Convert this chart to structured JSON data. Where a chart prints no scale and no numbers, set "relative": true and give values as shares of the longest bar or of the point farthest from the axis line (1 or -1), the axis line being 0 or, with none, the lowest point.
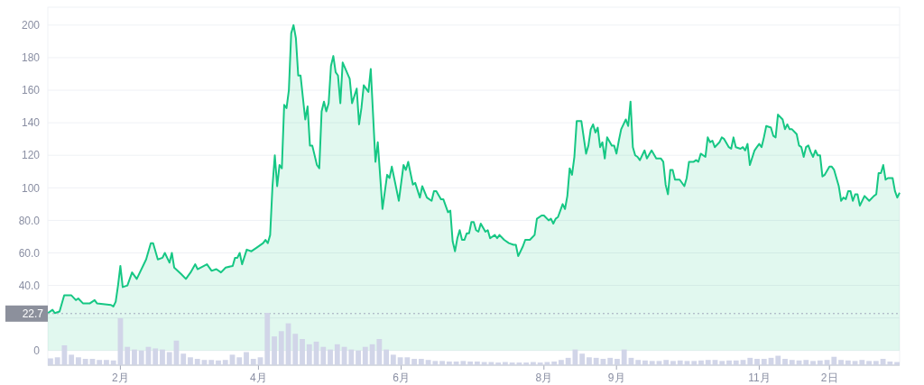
{
  "chart_data": [
    {
      "type": "area",
      "color": "#16c784",
      "grid": "y",
      "x": [
        "--01-01",
        "--01-03",
        "--01-04",
        "--01-06",
        "--01-08",
        "--01-11",
        "--01-13",
        "--01-14",
        "--01-16",
        "--01-19",
        "--01-21",
        "--01-22",
        "--01-28",
        "--01-29",
        "--01-30",
        "--01-31",
        "--02-01",
        "--02-02",
        "--02-04",
        "--02-06",
        "--02-08",
        "--02-12",
        "--02-14",
        "--02-15",
        "--02-17",
        "--02-19",
        "--02-20",
        "--02-22",
        "--02-23",
        "--02-24",
        "--02-27",
        "--03-01",
        "--03-03",
        "--03-05",
        "--03-06",
        "--03-10",
        "--03-12",
        "--03-14",
        "--03-16",
        "--03-18",
        "--03-21",
        "--03-22",
        "--03-23",
        "--03-24",
        "--03-25",
        "--03-27",
        "--03-29",
        "--03-31",
        "--04-03",
        "--04-04",
        "--04-05",
        "--04-06",
        "--04-07",
        "--04-08",
        "--04-09",
        "--04-10",
        "--04-11",
        "--04-12",
        "--04-13",
        "--04-14",
        "--04-15",
        "--04-16",
        "--04-17",
        "--04-18",
        "--04-19",
        "--04-21",
        "--04-22",
        "--04-23",
        "--04-24",
        "--04-26",
        "--04-27",
        "--04-28",
        "--04-29",
        "--04-30",
        "--05-01",
        "--05-02",
        "--05-03",
        "--05-04",
        "--05-05",
        "--05-06",
        "--05-07",
        "--05-10",
        "--05-11",
        "--05-13",
        "--05-14",
        "--05-15",
        "--05-16",
        "--05-18",
        "--05-19",
        "--05-21",
        "--05-22",
        "--05-24",
        "--05-26",
        "--05-27",
        "--05-28",
        "--05-31",
        "--06-02",
        "--06-03",
        "--06-04",
        "--06-06",
        "--06-07",
        "--06-09",
        "--06-10",
        "--06-12",
        "--06-14",
        "--06-15",
        "--06-16",
        "--06-18",
        "--06-19",
        "--06-21",
        "--06-22",
        "--06-23",
        "--06-24",
        "--06-25",
        "--06-26",
        "--06-27",
        "--06-28",
        "--06-29",
        "--06-30",
        "--07-01",
        "--07-02",
        "--07-03",
        "--07-04",
        "--07-05",
        "--07-07",
        "--07-08",
        "--07-09",
        "--07-11",
        "--07-12",
        "--07-13",
        "--07-15",
        "--07-17",
        "--07-19",
        "--07-20",
        "--07-21",
        "--07-23",
        "--07-24",
        "--07-26",
        "--07-28",
        "--07-29",
        "--07-31",
        "--08-01",
        "--08-03",
        "--08-04",
        "--08-05",
        "--08-06",
        "--08-07",
        "--08-09",
        "--08-10",
        "--08-11",
        "--08-12",
        "--08-13",
        "--08-14",
        "--08-15",
        "--08-17",
        "--08-19",
        "--08-20",
        "--08-21",
        "--08-22",
        "--08-23",
        "--08-24",
        "--08-25",
        "--08-26",
        "--08-27",
        "--08-28",
        "--08-30",
        "--08-31",
        "--09-01",
        "--09-02",
        "--09-03",
        "--09-04",
        "--09-05",
        "--09-06",
        "--09-07",
        "--09-08",
        "--09-09",
        "--09-10",
        "--09-11",
        "--09-13",
        "--09-14",
        "--09-16",
        "--09-18",
        "--09-20",
        "--09-21",
        "--09-22",
        "--09-23",
        "--09-24",
        "--09-25",
        "--09-26",
        "--09-28",
        "--09-30",
        "--10-01",
        "--10-02",
        "--10-04",
        "--10-05",
        "--10-06",
        "--10-07",
        "--10-09",
        "--10-10",
        "--10-11",
        "--10-12",
        "--10-13",
        "--10-15",
        "--10-16",
        "--10-17",
        "--10-19",
        "--10-20",
        "--10-21",
        "--10-22",
        "--10-24",
        "--10-25",
        "--10-26",
        "--10-27",
        "--10-28",
        "--10-30",
        "--10-31",
        "--11-01",
        "--11-02",
        "--11-03",
        "--11-04",
        "--11-06",
        "--11-07",
        "--11-08",
        "--11-09",
        "--11-11",
        "--11-12",
        "--11-13",
        "--11-14",
        "--11-15",
        "--11-17",
        "--11-18",
        "--11-19",
        "--11-20",
        "--11-21",
        "--11-22",
        "--11-23",
        "--11-24",
        "--11-25",
        "--11-26",
        "--11-27",
        "--11-28",
        "--11-29",
        "--12-01",
        "--12-02",
        "--12-03",
        "--12-05",
        "--12-06",
        "--12-07",
        "--12-08",
        "--12-09",
        "--12-10",
        "--12-11",
        "--12-12",
        "--12-13",
        "--12-14",
        "--12-16",
        "--12-18",
        "--12-20",
        "--12-21",
        "--12-22",
        "--12-23",
        "--12-24",
        "--12-25",
        "--12-26",
        "--12-28",
        "--12-29",
        "--12-30",
        "--12-31"
      ],
      "values": [
        23,
        25,
        23,
        24,
        34,
        34,
        31,
        32,
        29,
        29,
        31,
        29,
        28,
        27,
        30,
        40,
        52,
        39,
        40,
        48,
        44,
        56,
        66,
        66,
        56,
        57,
        60,
        54,
        60,
        51,
        47,
        44,
        48,
        53,
        50,
        53,
        49,
        50,
        48,
        51,
        52,
        57,
        57,
        60,
        53,
        62,
        61,
        63,
        66,
        68,
        66,
        71,
        101,
        120,
        101,
        114,
        112,
        151,
        149,
        160,
        195,
        200,
        192,
        169,
        169,
        142,
        150,
        126,
        126,
        114,
        112,
        147,
        153,
        147,
        152,
        175,
        181,
        171,
        169,
        152,
        177,
        167,
        152,
        161,
        139,
        149,
        163,
        159,
        173,
        116,
        128,
        87,
        108,
        106,
        113,
        92,
        114,
        111,
        116,
        102,
        103,
        94,
        101,
        94,
        92,
        98,
        98,
        93,
        93,
        85,
        86,
        67,
        61,
        69,
        74,
        68,
        68,
        72,
        72,
        79,
        79,
        74,
        73,
        78,
        73,
        74,
        69,
        71,
        69,
        71,
        68,
        66,
        65,
        65,
        58,
        64,
        68,
        68,
        71,
        81,
        83,
        83,
        80,
        81,
        78,
        81,
        82,
        90,
        87,
        95,
        112,
        108,
        119,
        141,
        141,
        121,
        126,
        136,
        139,
        134,
        137,
        125,
        128,
        118,
        131,
        126,
        126,
        121,
        129,
        136,
        139,
        142,
        138,
        153,
        125,
        120,
        119,
        117,
        123,
        118,
        123,
        118,
        118,
        116,
        102,
        96,
        111,
        111,
        105,
        105,
        101,
        106,
        116,
        116,
        117,
        116,
        121,
        119,
        131,
        128,
        129,
        125,
        128,
        131,
        130,
        125,
        124,
        131,
        125,
        124,
        125,
        123,
        127,
        114,
        123,
        125,
        127,
        125,
        131,
        138,
        137,
        132,
        131,
        145,
        142,
        136,
        139,
        136,
        136,
        133,
        126,
        125,
        119,
        125,
        126,
        122,
        119,
        123,
        120,
        120,
        107,
        108,
        113,
        113,
        111,
        101,
        92,
        94,
        93,
        98,
        98,
        92,
        96,
        96,
        89,
        95,
        92,
        95,
        96,
        109,
        109,
        114,
        105,
        106,
        106,
        98,
        94,
        97
      ],
      "xlim": [
        "--01-01",
        "--12-31"
      ],
      "xticks": [
        {
          "value": "--02-01",
          "label": "2月"
        },
        {
          "value": "--04-01",
          "label": "4月"
        },
        {
          "value": "--06-01",
          "label": "6月"
        },
        {
          "value": "--08-01",
          "label": "8月"
        },
        {
          "value": "--09-01",
          "label": "9月"
        },
        {
          "value": "--11-01",
          "label": "11月"
        },
        {
          "value": "--12-01",
          "label": "2日"
        }
      ],
      "ylim": [
        -9,
        211
      ],
      "yticks": [
        0,
        {
          "value": 20,
          "label": null
        },
        {
          "value": 40,
          "label": "40.0"
        },
        {
          "value": 60,
          "label": "60.0"
        },
        {
          "value": 80,
          "label": "80.0"
        },
        100,
        120,
        140,
        160,
        180,
        200
      ],
      "ref_lines": [
        {
          "axis": "y",
          "value": 22.7,
          "label": "22.7",
          "line_style": "dotted",
          "color": "#a1a7bb"
        }
      ]
    },
    {
      "type": "bar",
      "relative": true,
      "color": "#d1d5e8",
      "categories": [
        null,
        null,
        null,
        null,
        null,
        null,
        null,
        null,
        null,
        null,
        null,
        null,
        null,
        null,
        null,
        null,
        null,
        null,
        null,
        null,
        null,
        null,
        null,
        null,
        null,
        null,
        null,
        null,
        null,
        null,
        null,
        null,
        null,
        null,
        null,
        null,
        null,
        null,
        null,
        null,
        null,
        null,
        null,
        null,
        null,
        null,
        null,
        null,
        null,
        null,
        null,
        null,
        null,
        null,
        null,
        null,
        null,
        null,
        null,
        null,
        null,
        null,
        null,
        null,
        null,
        null,
        null,
        null,
        null,
        null,
        null,
        null,
        null,
        null,
        null,
        null,
        null,
        null,
        null,
        null,
        null,
        null,
        null,
        null,
        null,
        null,
        null,
        null,
        null,
        null,
        null,
        null,
        null,
        null,
        null,
        null,
        null,
        null,
        null,
        null,
        null,
        null,
        null,
        null,
        null,
        null,
        null,
        null,
        null,
        null,
        null,
        null,
        null,
        null,
        null,
        null,
        null,
        null,
        null,
        null,
        null,
        null
      ],
      "values": [
        0.13,
        0.15,
        0.38,
        0.2,
        0.15,
        0.12,
        0.12,
        0.1,
        0.1,
        0.09,
        0.9,
        0.35,
        0.3,
        0.28,
        0.35,
        0.32,
        0.3,
        0.25,
        0.47,
        0.22,
        0.15,
        0.12,
        0.1,
        0.1,
        0.09,
        0.1,
        0.2,
        0.15,
        0.25,
        0.12,
        0.15,
        1,
        0.55,
        0.65,
        0.8,
        0.6,
        0.5,
        0.4,
        0.45,
        0.35,
        0.3,
        0.4,
        0.35,
        0.3,
        0.28,
        0.35,
        0.4,
        0.5,
        0.3,
        0.2,
        0.15,
        0.15,
        0.12,
        0.12,
        0.1,
        0.08,
        0.08,
        0.07,
        0.07,
        0.08,
        0.07,
        0.07,
        0.06,
        0.06,
        0.05,
        0.06,
        0.05,
        0.05,
        0.05,
        0.06,
        0.05,
        0.06,
        0.07,
        0.1,
        0.14,
        0.3,
        0.22,
        0.15,
        0.14,
        0.12,
        0.14,
        0.12,
        0.3,
        0.14,
        0.1,
        0.09,
        0.08,
        0.08,
        0.1,
        0.08,
        0.09,
        0.08,
        0.08,
        0.09,
        0.1,
        0.1,
        0.08,
        0.09,
        0.09,
        0.1,
        0.14,
        0.12,
        0.12,
        0.14,
        0.18,
        0.12,
        0.1,
        0.09,
        0.1,
        0.08,
        0.09,
        0.1,
        0.16,
        0.1,
        0.09,
        0.08,
        0.1,
        0.08,
        0.08,
        0.12,
        0.07,
        0.06
      ]
    }
  ]
}
